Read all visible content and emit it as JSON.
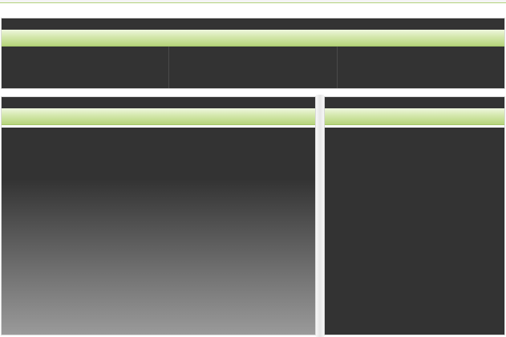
{
  "colors": {
    "dark_bar": "#333333",
    "accent_green": "#b6d47c",
    "accent_green_light": "#eef6df",
    "gradient_bottom": "#9a9a9a",
    "gutter": "#e6e6e6",
    "border": "#d9d9d9"
  },
  "header": {
    "cells": [
      "",
      "",
      ""
    ]
  },
  "main": {},
  "side": {}
}
